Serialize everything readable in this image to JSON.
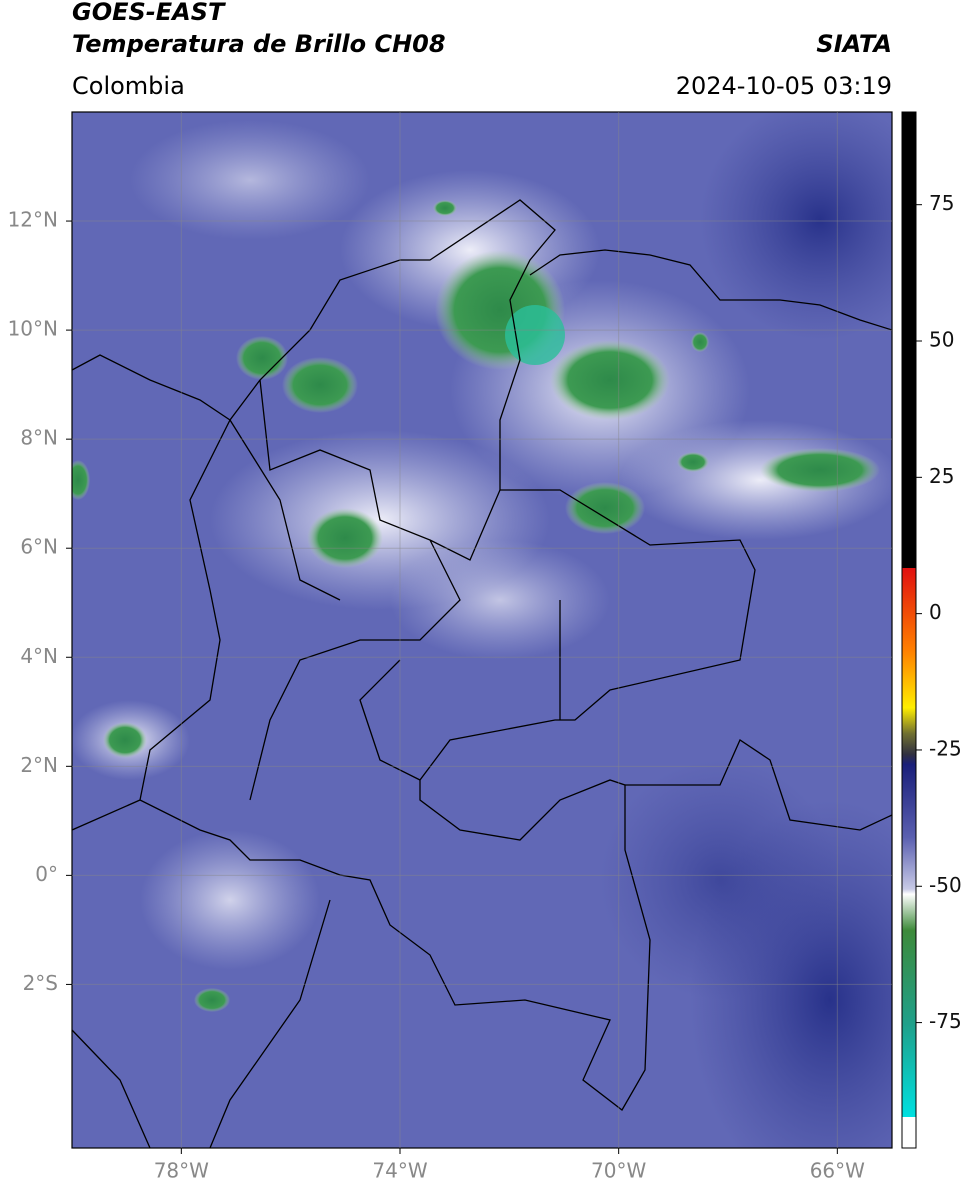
{
  "header": {
    "title": "GOES-EAST",
    "subtitle": "Temperatura de Brillo CH08",
    "source": "SIATA",
    "region": "Colombia",
    "datetime": "2024-10-05 03:19"
  },
  "map": {
    "xlim": [
      -80,
      -65
    ],
    "ylim": [
      -5,
      14
    ],
    "xticks": [
      {
        "value": -78,
        "label": "78°W"
      },
      {
        "value": -74,
        "label": "74°W"
      },
      {
        "value": -70,
        "label": "70°W"
      },
      {
        "value": -66,
        "label": "66°W"
      }
    ],
    "yticks": [
      {
        "value": 12,
        "label": "12°N"
      },
      {
        "value": 10,
        "label": "10°N"
      },
      {
        "value": 8,
        "label": "8°N"
      },
      {
        "value": 6,
        "label": "6°N"
      },
      {
        "value": 4,
        "label": "4°N"
      },
      {
        "value": 2,
        "label": "2°N"
      },
      {
        "value": 0,
        "label": "0°"
      },
      {
        "value": -2,
        "label": "2°S"
      }
    ],
    "grid": true
  },
  "colorbar": {
    "clim": [
      -98,
      92
    ],
    "ticks": [
      75,
      50,
      25,
      0,
      -25,
      -50,
      -75
    ]
  }
}
